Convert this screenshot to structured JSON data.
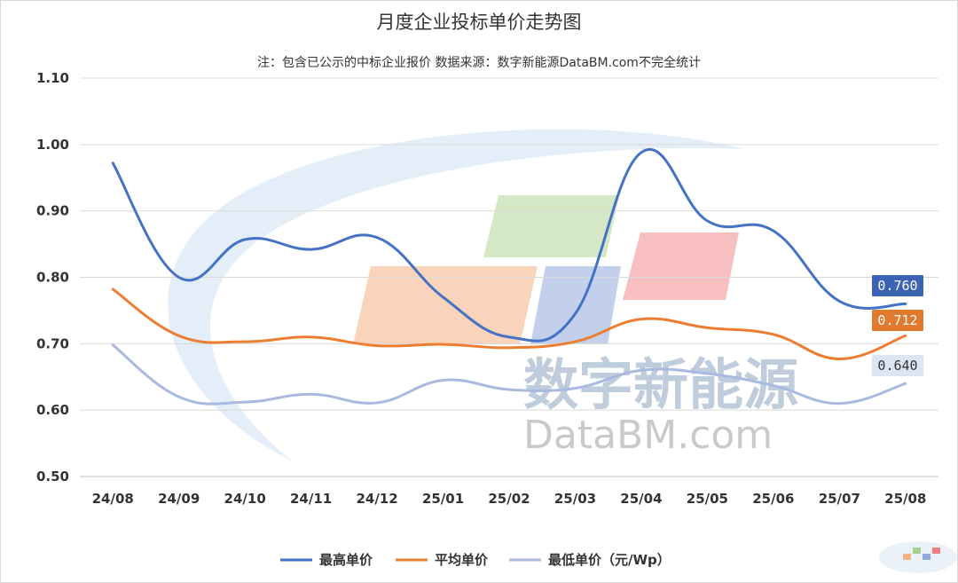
{
  "chart_data": {
    "type": "line",
    "title": "月度企业投标单价走势图",
    "subtitle": "注：包含已公示的中标企业报价 数据来源：数字新能源DataBM.com不完全统计",
    "xlabel": "",
    "ylabel": "",
    "categories": [
      "24/08",
      "24/09",
      "24/10",
      "24/11",
      "24/12",
      "25/01",
      "25/02",
      "25/03",
      "25/04",
      "25/05",
      "25/06",
      "25/07",
      "25/08"
    ],
    "ylim": [
      0.5,
      1.1
    ],
    "yticks": [
      "0.50",
      "0.60",
      "0.70",
      "0.80",
      "0.90",
      "1.00",
      "1.10"
    ],
    "grid": "horizontal",
    "legend": "bottom",
    "series": [
      {
        "name": "最高单价",
        "color": "#4472c4",
        "values": [
          0.972,
          0.8,
          0.857,
          0.842,
          0.86,
          0.77,
          0.71,
          0.745,
          0.988,
          0.885,
          0.87,
          0.764,
          0.76
        ],
        "last_label": "0.760",
        "label_bg": "#3b63b3"
      },
      {
        "name": "平均单价",
        "color": "#ed7d31",
        "values": [
          0.782,
          0.712,
          0.703,
          0.71,
          0.697,
          0.699,
          0.694,
          0.703,
          0.737,
          0.724,
          0.714,
          0.677,
          0.712
        ],
        "last_label": "0.712",
        "label_bg": "#e07b2e"
      },
      {
        "name": "最低单价（元/Wp）",
        "color": "#a9b9e0",
        "values": [
          0.698,
          0.62,
          0.612,
          0.624,
          0.611,
          0.645,
          0.631,
          0.633,
          0.66,
          0.655,
          0.637,
          0.61,
          0.64
        ],
        "last_label": "0.640",
        "label_bg": "#dde5f5"
      }
    ]
  },
  "watermark": {
    "cn": "数字新能源",
    "en": "DataBM.com"
  }
}
